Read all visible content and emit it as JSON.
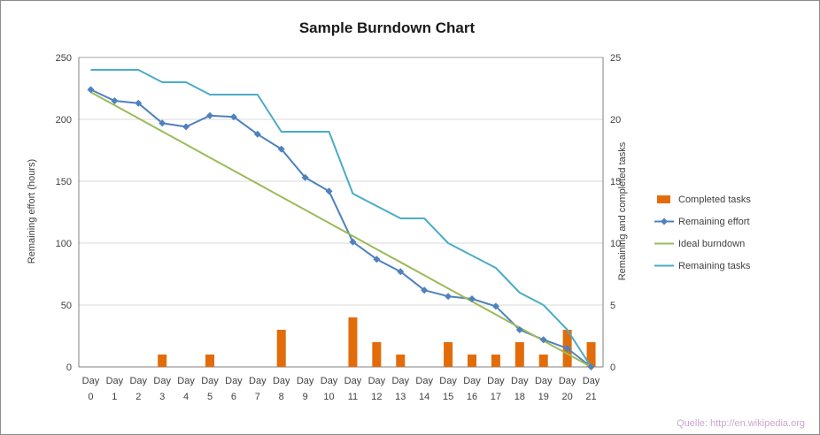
{
  "chart_data": {
    "type": "combo",
    "title": "Sample Burndown Chart",
    "categories": [
      "Day 0",
      "Day 1",
      "Day 2",
      "Day 3",
      "Day 4",
      "Day 5",
      "Day 6",
      "Day 7",
      "Day 8",
      "Day 9",
      "Day 10",
      "Day 11",
      "Day 12",
      "Day 13",
      "Day 14",
      "Day 15",
      "Day 16",
      "Day 17",
      "Day 18",
      "Day 19",
      "Day 20",
      "Day 21"
    ],
    "left_axis": {
      "label": "Remaining effort (hours)",
      "min": 0,
      "max": 250,
      "ticks": [
        0,
        50,
        100,
        150,
        200,
        250
      ]
    },
    "right_axis": {
      "label": "Remaining and  completed tasks",
      "min": 0,
      "max": 25,
      "ticks": [
        0,
        5,
        10,
        15,
        20,
        25
      ]
    },
    "grid": true,
    "legend_position": "right",
    "series": [
      {
        "name": "Completed tasks",
        "type": "bar",
        "axis": "right",
        "color": "#E36C0A",
        "values": [
          0,
          0,
          0,
          1,
          0,
          1,
          0,
          0,
          3,
          0,
          0,
          4,
          2,
          1,
          0,
          2,
          1,
          1,
          2,
          1,
          3,
          2
        ]
      },
      {
        "name": "Remaining effort",
        "type": "line",
        "marker": "diamond",
        "axis": "left",
        "color": "#4F81BD",
        "values": [
          224,
          215,
          213,
          197,
          194,
          203,
          202,
          188,
          176,
          153,
          142,
          101,
          87,
          77,
          62,
          57,
          55,
          49,
          30,
          22,
          15,
          0
        ]
      },
      {
        "name": "Ideal burndown",
        "type": "line",
        "axis": "left",
        "color": "#9BBB59",
        "values": [
          222,
          211.4,
          200.9,
          190.3,
          179.7,
          169.1,
          158.6,
          148,
          137.4,
          126.9,
          116.3,
          105.7,
          95.1,
          84.6,
          74,
          63.4,
          52.9,
          42.3,
          31.7,
          21.1,
          10.6,
          0
        ]
      },
      {
        "name": "Remaining tasks",
        "type": "line",
        "axis": "right",
        "color": "#4BACC6",
        "values": [
          24,
          24,
          24,
          23,
          23,
          22,
          22,
          22,
          19,
          19,
          19,
          14,
          13,
          12,
          12,
          10,
          9,
          8,
          6,
          5,
          3,
          0
        ]
      }
    ]
  },
  "source_credit": {
    "text": "Quelle: http://en.wikipedia.org",
    "color": "#CBA6CF"
  },
  "colors": {
    "gridline": "#D9D9D9",
    "plot_border": "#A6A6A6",
    "axis_line": "#808080",
    "tick_text": "#404040"
  }
}
